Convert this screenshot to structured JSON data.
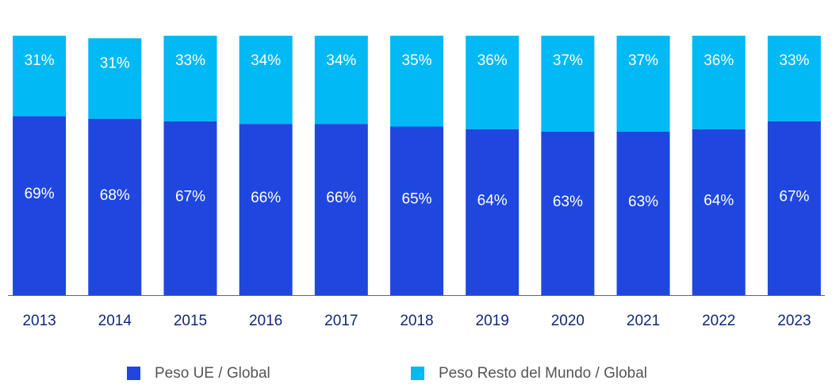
{
  "chart_data": {
    "type": "stacked_bar",
    "categories": [
      "2013",
      "2014",
      "2015",
      "2016",
      "2017",
      "2018",
      "2019",
      "2020",
      "2021",
      "2022",
      "2023"
    ],
    "series": [
      {
        "name": "Peso UE / Global",
        "color": "#1f47e0",
        "values": [
          69,
          68,
          67,
          66,
          66,
          65,
          64,
          63,
          63,
          64,
          67
        ],
        "value_labels": [
          "69%",
          "68%",
          "67%",
          "66%",
          "66%",
          "65%",
          "64%",
          "63%",
          "63%",
          "64%",
          "67%"
        ]
      },
      {
        "name": "Peso Resto del Mundo / Global",
        "color": "#00b9f5",
        "values": [
          31,
          31,
          33,
          34,
          34,
          35,
          36,
          37,
          37,
          36,
          33
        ],
        "value_labels": [
          "31%",
          "31%",
          "33%",
          "34%",
          "34%",
          "35%",
          "36%",
          "37%",
          "37%",
          "36%",
          "33%"
        ]
      }
    ],
    "ylim": [
      0,
      100
    ]
  }
}
